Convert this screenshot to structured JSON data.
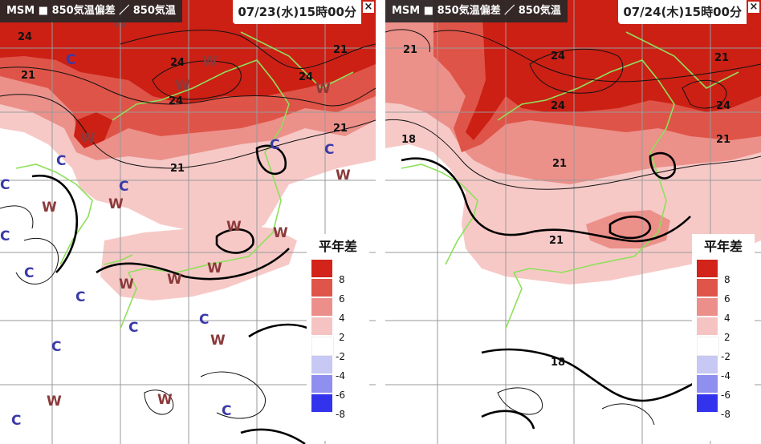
{
  "panels": [
    {
      "title": "MSM ■ 850気温偏差 ／ 850気温",
      "time": "07/23(水)15時00分",
      "close": "×",
      "contour_labels": [
        "24",
        "21",
        "24",
        "24",
        "21",
        "24",
        "21",
        "21"
      ],
      "markers_W": [
        "W",
        "W",
        "W",
        "W",
        "W",
        "W",
        "W",
        "W",
        "W",
        "W",
        "W",
        "W",
        "W",
        "W",
        "W",
        "W"
      ],
      "markers_C": [
        "C",
        "C",
        "C",
        "C",
        "C",
        "C",
        "C",
        "C",
        "C",
        "C",
        "C",
        "C",
        "C",
        "C"
      ]
    },
    {
      "title": "MSM ■ 850気温偏差 ／ 850気温",
      "time": "07/24(木)15時00分",
      "close": "×",
      "contour_labels": [
        "21",
        "24",
        "21",
        "24",
        "24",
        "21",
        "18",
        "21",
        "21",
        "18"
      ]
    }
  ],
  "legend": {
    "title": "平年差",
    "entries": [
      {
        "label": "8",
        "color": "#d2241a"
      },
      {
        "label": "6",
        "color": "#e0554a"
      },
      {
        "label": "4",
        "color": "#ec8f8a"
      },
      {
        "label": "2",
        "color": "#f5c4c2"
      },
      {
        "label": "-2",
        "color": "#ffffff"
      },
      {
        "label": "-4",
        "color": "#c8c8f4"
      },
      {
        "label": "-6",
        "color": "#8f8ff0"
      },
      {
        "label": "-8",
        "color": "#3333ee"
      }
    ]
  },
  "colors": {
    "anomaly_8": "#cc2015",
    "anomaly_6": "#df5448",
    "anomaly_4": "#ec908a",
    "anomaly_2": "#f6c9c7",
    "coastline": "#8ee05a",
    "grid": "#9a9a9a",
    "marker_W": "#8b3a3a",
    "marker_C": "#3a3aa8"
  }
}
